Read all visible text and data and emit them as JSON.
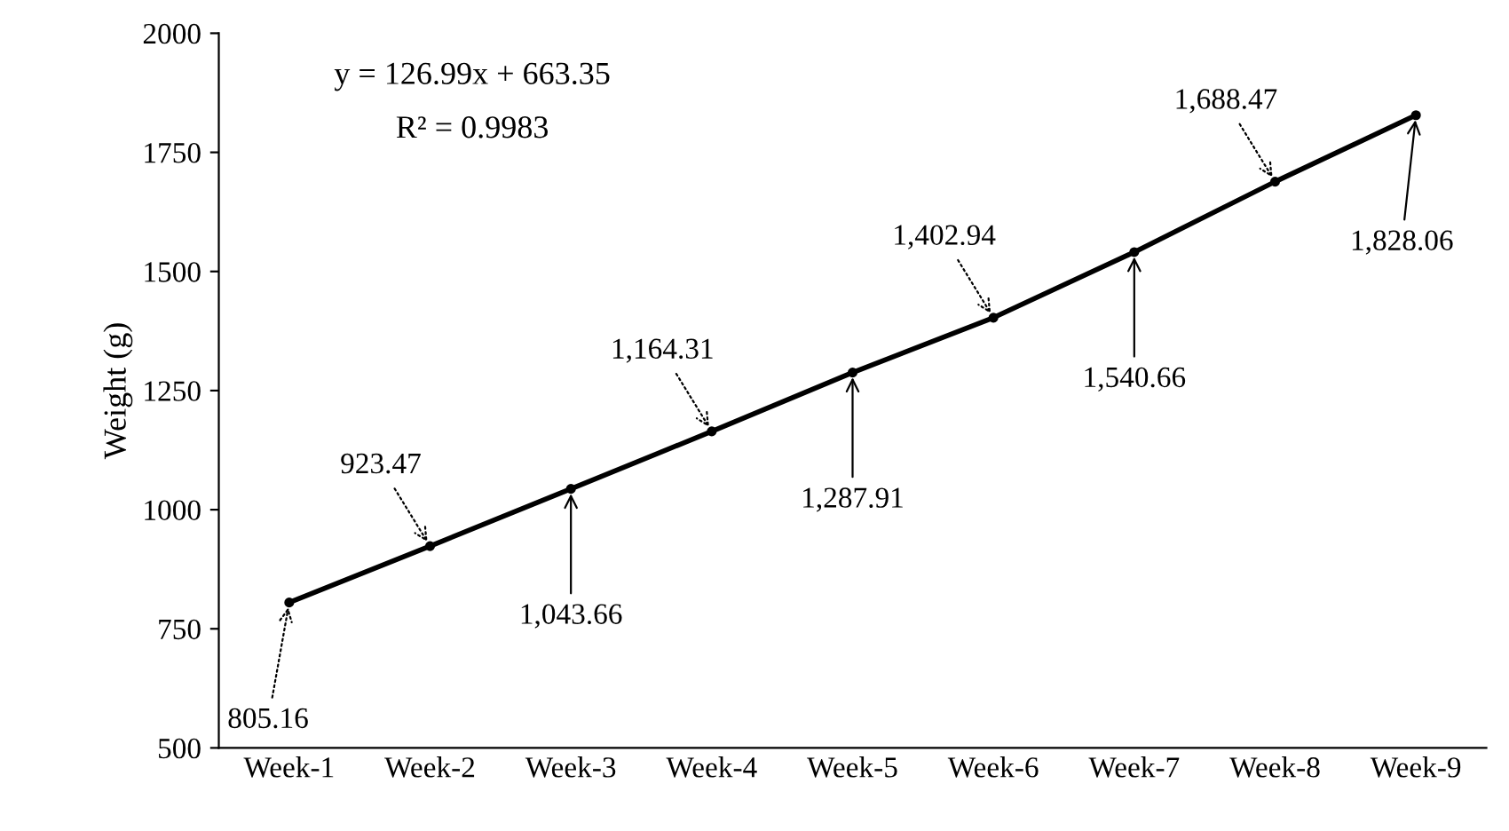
{
  "chart_data": {
    "type": "line",
    "ylabel": "Weight (g)",
    "categories": [
      "Week-1",
      "Week-2",
      "Week-3",
      "Week-4",
      "Week-5",
      "Week-6",
      "Week-7",
      "Week-8",
      "Week-9"
    ],
    "series": [
      {
        "color": "#000000",
        "values": [
          805.16,
          923.47,
          1043.66,
          1164.31,
          1287.91,
          1402.94,
          1540.66,
          1688.47,
          1828.06
        ],
        "value_labels": [
          "805.16",
          "923.47",
          "1,043.66",
          "1,164.31",
          "1,287.91",
          "1,402.94",
          "1,540.66",
          "1,688.47",
          "1,828.06"
        ]
      }
    ],
    "ylim": [
      500,
      2000
    ],
    "yticks": [
      500,
      750,
      1000,
      1250,
      1500,
      1750,
      2000
    ],
    "annotations": [
      "y = 126.99x + 663.35",
      "R² = 0.9983"
    ],
    "grid": false,
    "marker": "circle",
    "line_style": "solid"
  }
}
